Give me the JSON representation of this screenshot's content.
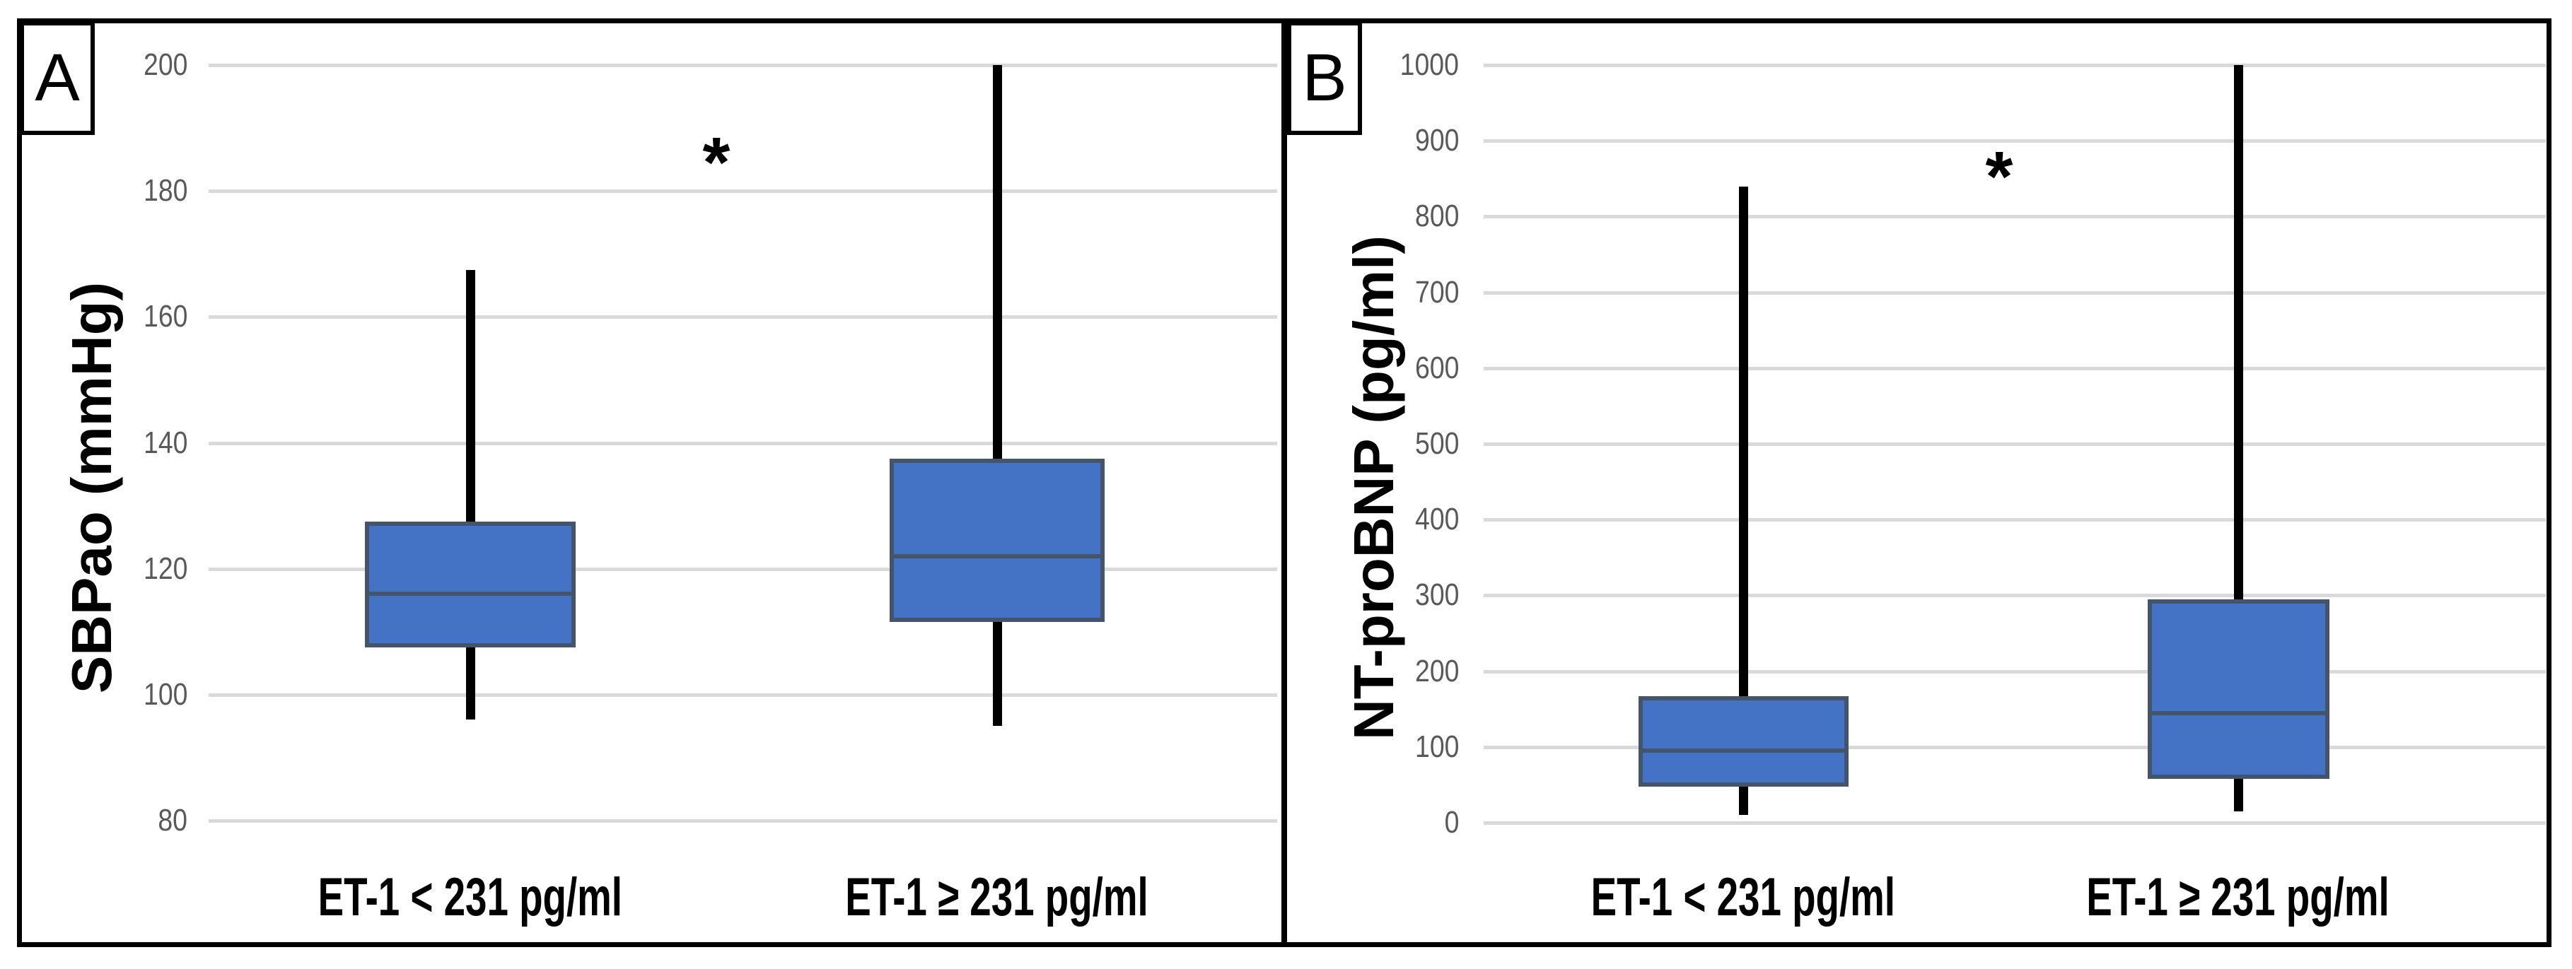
{
  "colors": {
    "background": "#FFFFFF",
    "frame": "#000000",
    "box_fill": "#4472C4",
    "box_border": "#44546A",
    "median_line": "#44546A",
    "whisker": "#000000",
    "gridline": "#D9D9D9",
    "tick_label": "#595959",
    "text": "#000000"
  },
  "chart_data": [
    {
      "type": "boxplot",
      "panel_label": "A",
      "ylabel": "SBPao (mmHg)",
      "ylim": [
        80,
        200
      ],
      "ytick_step": 20,
      "yticks": [
        200,
        180,
        160,
        140,
        120,
        100,
        80
      ],
      "grid": true,
      "legend": false,
      "significance_marker": "*",
      "categories": [
        "ET-1 < 231 pg/ml",
        "ET-1 ≥ 231 pg/ml"
      ],
      "series": [
        {
          "category": "ET-1 < 231 pg/ml",
          "whisker_low": 96,
          "q1": 107.5,
          "median": 116,
          "q3": 127.5,
          "whisker_high": 167.5
        },
        {
          "category": "ET-1 ≥ 231 pg/ml",
          "whisker_low": 95,
          "q1": 111.5,
          "median": 122,
          "q3": 137.5,
          "whisker_high": 200
        }
      ]
    },
    {
      "type": "boxplot",
      "panel_label": "B",
      "ylabel": "NT-proBNP (pg/ml)",
      "ylim": [
        0,
        1000
      ],
      "ytick_step": 100,
      "yticks": [
        1000,
        900,
        800,
        700,
        600,
        500,
        400,
        300,
        200,
        100,
        0
      ],
      "grid": true,
      "legend": false,
      "significance_marker": "*",
      "categories": [
        "ET-1 < 231 pg/ml",
        "ET-1 ≥ 231 pg/ml"
      ],
      "series": [
        {
          "category": "ET-1 < 231 pg/ml",
          "whisker_low": 10,
          "q1": 48,
          "median": 95,
          "q3": 167,
          "whisker_high": 840
        },
        {
          "category": "ET-1 ≥ 231 pg/ml",
          "whisker_low": 15,
          "q1": 58,
          "median": 145,
          "q3": 295,
          "whisker_high": 1000
        }
      ]
    }
  ]
}
